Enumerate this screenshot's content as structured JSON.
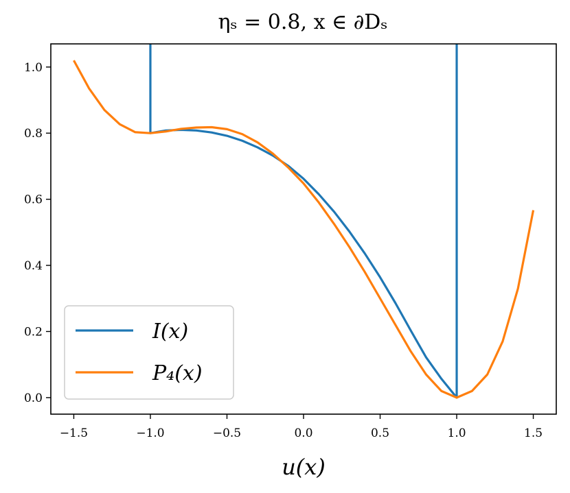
{
  "chart_data": {
    "type": "line",
    "title": "ηₛ = 0.8, x ∈ ∂Dₛ",
    "xlabel": "u(x)",
    "ylabel": "",
    "xlim": [
      -1.65,
      1.65
    ],
    "ylim": [
      -0.05,
      1.07
    ],
    "xticks": [
      -1.5,
      -1.0,
      -0.5,
      0.0,
      0.5,
      1.0,
      1.5
    ],
    "xtick_labels": [
      "−1.5",
      "−1.0",
      "−0.5",
      "0.0",
      "0.5",
      "1.0",
      "1.5"
    ],
    "yticks": [
      0.0,
      0.2,
      0.4,
      0.6,
      0.8,
      1.0
    ],
    "ytick_labels": [
      "0.0",
      "0.2",
      "0.4",
      "0.6",
      "0.8",
      "1.0"
    ],
    "grid": false,
    "legend_position": "lower-left",
    "series": [
      {
        "name": "I(x)",
        "color": "#1f77b4",
        "x": [
          -1.0,
          -1.0,
          -0.9,
          -0.8,
          -0.7,
          -0.6,
          -0.5,
          -0.4,
          -0.3,
          -0.2,
          -0.1,
          0.0,
          0.1,
          0.2,
          0.3,
          0.4,
          0.5,
          0.6,
          0.7,
          0.8,
          0.9,
          1.0,
          1.0
        ],
        "y": [
          1.07,
          0.8,
          0.808,
          0.81,
          0.808,
          0.802,
          0.792,
          0.777,
          0.757,
          0.732,
          0.701,
          0.662,
          0.615,
          0.562,
          0.502,
          0.436,
          0.364,
          0.286,
          0.203,
          0.122,
          0.057,
          0.0,
          1.07
        ]
      },
      {
        "name": "P₄(x)",
        "color": "#ff7f0e",
        "x": [
          -1.5,
          -1.4,
          -1.3,
          -1.2,
          -1.1,
          -1.0,
          -0.9,
          -0.8,
          -0.7,
          -0.6,
          -0.5,
          -0.4,
          -0.3,
          -0.2,
          -0.1,
          0.0,
          0.1,
          0.2,
          0.3,
          0.4,
          0.5,
          0.6,
          0.7,
          0.8,
          0.9,
          1.0,
          1.1,
          1.2,
          1.3,
          1.4,
          1.5
        ],
        "y": [
          1.02,
          0.935,
          0.87,
          0.827,
          0.803,
          0.8,
          0.805,
          0.813,
          0.817,
          0.818,
          0.812,
          0.797,
          0.772,
          0.738,
          0.696,
          0.648,
          0.59,
          0.525,
          0.455,
          0.38,
          0.3,
          0.22,
          0.14,
          0.07,
          0.02,
          0.0,
          0.02,
          0.07,
          0.17,
          0.33,
          0.567
        ]
      }
    ]
  }
}
